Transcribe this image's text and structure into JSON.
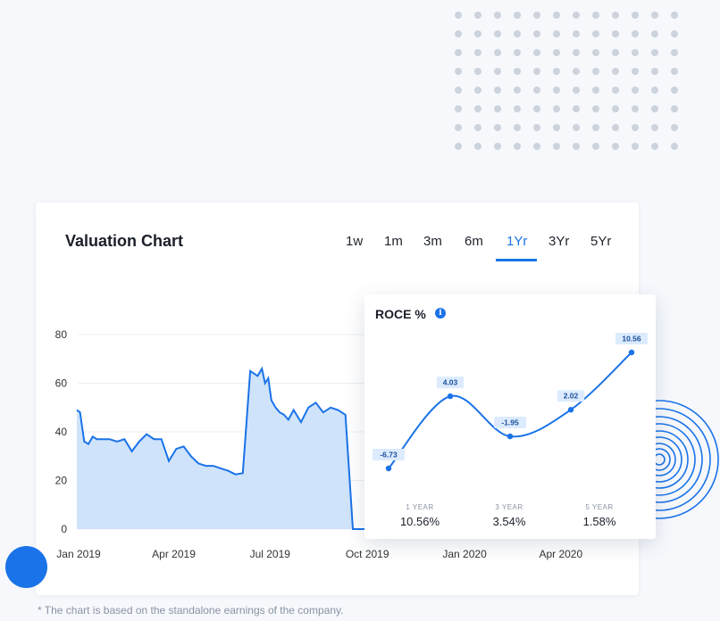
{
  "header": {
    "title": "Valuation Chart"
  },
  "tabs": [
    {
      "label": "1w"
    },
    {
      "label": "1m"
    },
    {
      "label": "3m"
    },
    {
      "label": "6m"
    },
    {
      "label": "1Yr",
      "active": true
    },
    {
      "label": "3Yr"
    },
    {
      "label": "5Yr"
    }
  ],
  "colors": {
    "accent": "#1a73e8",
    "area_fill": "#cfe3fb"
  },
  "chart_data": [
    {
      "type": "area",
      "title": "",
      "xlabel": "",
      "ylabel": "",
      "ylim": [
        0,
        80
      ],
      "yticks": [
        0,
        20,
        40,
        60,
        80
      ],
      "xtick_labels": [
        "Jan 2019",
        "Apr 2019",
        "Jul 2019",
        "Oct 2019",
        "Jan 2020",
        "Apr 2020"
      ],
      "grid": true,
      "x": [
        "2019-01-01",
        "2019-01-04",
        "2019-01-08",
        "2019-01-12",
        "2019-01-16",
        "2019-01-20",
        "2019-01-25",
        "2019-02-01",
        "2019-02-08",
        "2019-02-15",
        "2019-02-22",
        "2019-03-01",
        "2019-03-08",
        "2019-03-15",
        "2019-03-22",
        "2019-03-29",
        "2019-04-05",
        "2019-04-12",
        "2019-04-19",
        "2019-04-26",
        "2019-05-03",
        "2019-05-10",
        "2019-05-17",
        "2019-05-24",
        "2019-05-31",
        "2019-06-07",
        "2019-06-14",
        "2019-06-21",
        "2019-06-25",
        "2019-06-28",
        "2019-07-01",
        "2019-07-04",
        "2019-07-08",
        "2019-07-12",
        "2019-07-16",
        "2019-07-20",
        "2019-07-25",
        "2019-08-01",
        "2019-08-08",
        "2019-08-15",
        "2019-08-22",
        "2019-08-29",
        "2019-09-05",
        "2019-09-12",
        "2019-09-19",
        "2019-09-23",
        "2019-09-26",
        "2019-09-28",
        "2019-09-30",
        "2019-10-10"
      ],
      "values": [
        49,
        48,
        36,
        35,
        38,
        37,
        37,
        37,
        36,
        37,
        32,
        36,
        39,
        37,
        37,
        28,
        33,
        34,
        30,
        27,
        26,
        26,
        25,
        24,
        22.5,
        23,
        65,
        63,
        66,
        60,
        62,
        53,
        50,
        48,
        47,
        45,
        49,
        44,
        50,
        52,
        48,
        50,
        49,
        47,
        0,
        0,
        0,
        0,
        0,
        0
      ]
    },
    {
      "type": "line",
      "title": "ROCE %",
      "x": [
        "1 YEAR",
        "",
        "3 YEAR",
        "",
        "5 YEAR"
      ],
      "values": [
        -6.73,
        4.03,
        -1.95,
        2.02,
        10.56
      ],
      "data_labels": [
        "-6.73",
        "4.03",
        "-1.95",
        "2.02",
        "10.56"
      ]
    }
  ],
  "roce": {
    "title": "ROCE %",
    "info_icon": "i",
    "stats": [
      {
        "label": "1 YEAR",
        "value": "10.56%"
      },
      {
        "label": "3 YEAR",
        "value": "3.54%"
      },
      {
        "label": "5 YEAR",
        "value": "1.58%"
      }
    ]
  },
  "footnote": "* The chart is based on the standalone earnings of the company."
}
